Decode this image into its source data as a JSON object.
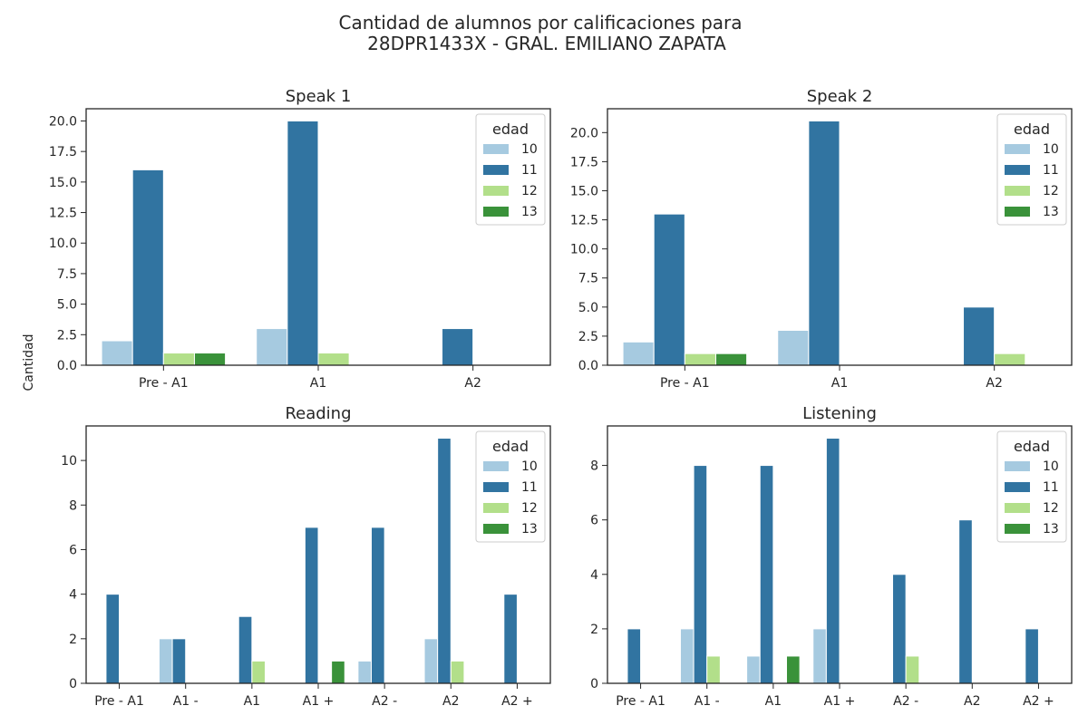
{
  "figure": {
    "title_line1": "Cantidad de alumnos por calificaciones para",
    "title_line2": "28DPR1433X - GRAL. EMILIANO ZAPATA",
    "shared_ylabel": "Cantidad"
  },
  "legend": {
    "title": "edad",
    "entries": [
      "10",
      "11",
      "12",
      "13"
    ],
    "colors": [
      "#a6cae0",
      "#3174a1",
      "#b2df8a",
      "#3a923a"
    ],
    "placement": "upper right"
  },
  "chart_data": [
    {
      "type": "bar",
      "title": "Speak 1",
      "categories": [
        "Pre - A1",
        "A1",
        "A2"
      ],
      "series": [
        {
          "name": "10",
          "values": [
            2,
            3,
            0
          ]
        },
        {
          "name": "11",
          "values": [
            16,
            20,
            3
          ]
        },
        {
          "name": "12",
          "values": [
            1,
            1,
            0
          ]
        },
        {
          "name": "13",
          "values": [
            1,
            0,
            0
          ]
        }
      ],
      "ylim": [
        0,
        21
      ],
      "yticks": [
        "0.0",
        "2.5",
        "5.0",
        "7.5",
        "10.0",
        "12.5",
        "15.0",
        "17.5",
        "20.0"
      ],
      "grid": false
    },
    {
      "type": "bar",
      "title": "Speak 2",
      "categories": [
        "Pre - A1",
        "A1",
        "A2"
      ],
      "series": [
        {
          "name": "10",
          "values": [
            2,
            3,
            0
          ]
        },
        {
          "name": "11",
          "values": [
            13,
            21,
            5
          ]
        },
        {
          "name": "12",
          "values": [
            1,
            0,
            1
          ]
        },
        {
          "name": "13",
          "values": [
            1,
            0,
            0
          ]
        }
      ],
      "ylim": [
        0,
        22.05
      ],
      "yticks": [
        "0.0",
        "2.5",
        "5.0",
        "7.5",
        "10.0",
        "12.5",
        "15.0",
        "17.5",
        "20.0"
      ],
      "grid": false
    },
    {
      "type": "bar",
      "title": "Reading",
      "categories": [
        "Pre - A1",
        "A1 -",
        "A1",
        "A1 +",
        "A2 -",
        "A2",
        "A2 +"
      ],
      "series": [
        {
          "name": "10",
          "values": [
            0,
            2,
            0,
            0,
            1,
            2,
            0
          ]
        },
        {
          "name": "11",
          "values": [
            4,
            2,
            3,
            7,
            7,
            11,
            4
          ]
        },
        {
          "name": "12",
          "values": [
            0,
            0,
            1,
            0,
            0,
            1,
            0
          ]
        },
        {
          "name": "13",
          "values": [
            0,
            0,
            0,
            1,
            0,
            0,
            0
          ]
        }
      ],
      "ylim": [
        0,
        11.55
      ],
      "yticks": [
        "0",
        "2",
        "4",
        "6",
        "8",
        "10"
      ],
      "grid": false
    },
    {
      "type": "bar",
      "title": "Listening",
      "categories": [
        "Pre - A1",
        "A1 -",
        "A1",
        "A1 +",
        "A2 -",
        "A2",
        "A2 +"
      ],
      "series": [
        {
          "name": "10",
          "values": [
            0,
            2,
            1,
            2,
            0,
            0,
            0
          ]
        },
        {
          "name": "11",
          "values": [
            2,
            8,
            8,
            9,
            4,
            6,
            2
          ]
        },
        {
          "name": "12",
          "values": [
            0,
            1,
            0,
            0,
            1,
            0,
            0
          ]
        },
        {
          "name": "13",
          "values": [
            0,
            0,
            1,
            0,
            0,
            0,
            0
          ]
        }
      ],
      "ylim": [
        0,
        9.45
      ],
      "yticks": [
        "0",
        "2",
        "4",
        "6",
        "8"
      ],
      "grid": false
    }
  ]
}
